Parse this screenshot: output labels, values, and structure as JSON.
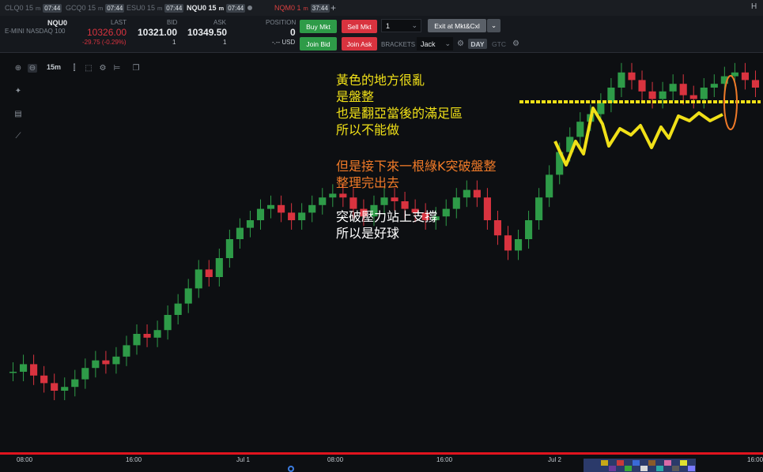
{
  "tabs": [
    {
      "label": "CLQ0 15",
      "sup": "m",
      "time": "07:44",
      "state": "normal"
    },
    {
      "label": "GCQ0 15",
      "sup": "m",
      "time": "07:44",
      "state": "normal"
    },
    {
      "label": "ESU0 15",
      "sup": "m",
      "time": "07:44",
      "state": "normal"
    },
    {
      "label": "NQU0 15",
      "sup": "m",
      "time": "07:44",
      "state": "active"
    },
    {
      "label": "NQM0 1",
      "sup": "m",
      "time": "37:44",
      "state": "warn"
    }
  ],
  "header_right": {
    "letter": "H"
  },
  "quote": {
    "symbol": "NQU0",
    "name": "E-MINI NASDAQ 100",
    "last_label": "LAST",
    "last": "10326.00",
    "change": "-29.75 (-0.29%)",
    "bid_label": "BID",
    "bid": "10321.00",
    "bid_size": "1",
    "ask_label": "ASK",
    "ask": "10349.50",
    "ask_size": "1",
    "position_label": "POSITION",
    "position": "0",
    "pnl": "-.-- USD"
  },
  "orders": {
    "buy_mkt": "Buy Mkt",
    "sell_mkt": "Sell Mkt",
    "qty": "1",
    "exit": "Exit at Mkt&Cxl",
    "join_bid": "Join Bid",
    "join_ask": "Join Ask",
    "brackets_label": "BRACKETS",
    "bracket": "Jack",
    "day": "DAY",
    "gtc": "GTC"
  },
  "toolbar": {
    "interval": "15m"
  },
  "annotations": {
    "yellow": [
      "黃色的地方很亂",
      "是盤整",
      "也是翻亞當後的滿足區",
      "所以不能做"
    ],
    "orange": [
      "但是接下來一根綠K突破盤整",
      "整理完出去"
    ],
    "white": [
      "突破壓力站上支撐",
      "所以是好球"
    ]
  },
  "xaxis": [
    "08:00",
    "16:00",
    "Jul 1",
    "08:00",
    "16:00",
    "Jul 2",
    "16:00"
  ],
  "colors": {
    "bull": "#2e9b48",
    "bear": "#d9333f",
    "annotation_yellow": "#f0e018",
    "annotation_orange": "#f07a28",
    "annotation_white": "#ffffff"
  },
  "chart_data": {
    "type": "candlestick",
    "note_level_line": "horizontal dashed yellow resistance line",
    "closes": [
      20,
      22,
      19,
      17,
      15,
      16,
      18,
      21,
      23,
      22,
      24,
      27,
      30,
      29,
      31,
      35,
      38,
      42,
      47,
      45,
      50,
      55,
      58,
      60,
      63,
      64,
      62,
      60,
      62,
      64,
      66,
      67,
      66,
      63,
      61,
      64,
      66,
      65,
      63,
      62,
      60,
      61,
      63,
      66,
      68,
      66,
      60,
      56,
      52,
      55,
      60,
      66,
      72,
      78,
      82,
      86,
      88,
      91,
      95,
      99,
      97,
      94,
      92,
      94,
      96,
      93,
      92,
      95,
      96,
      98,
      99,
      97,
      95
    ]
  }
}
